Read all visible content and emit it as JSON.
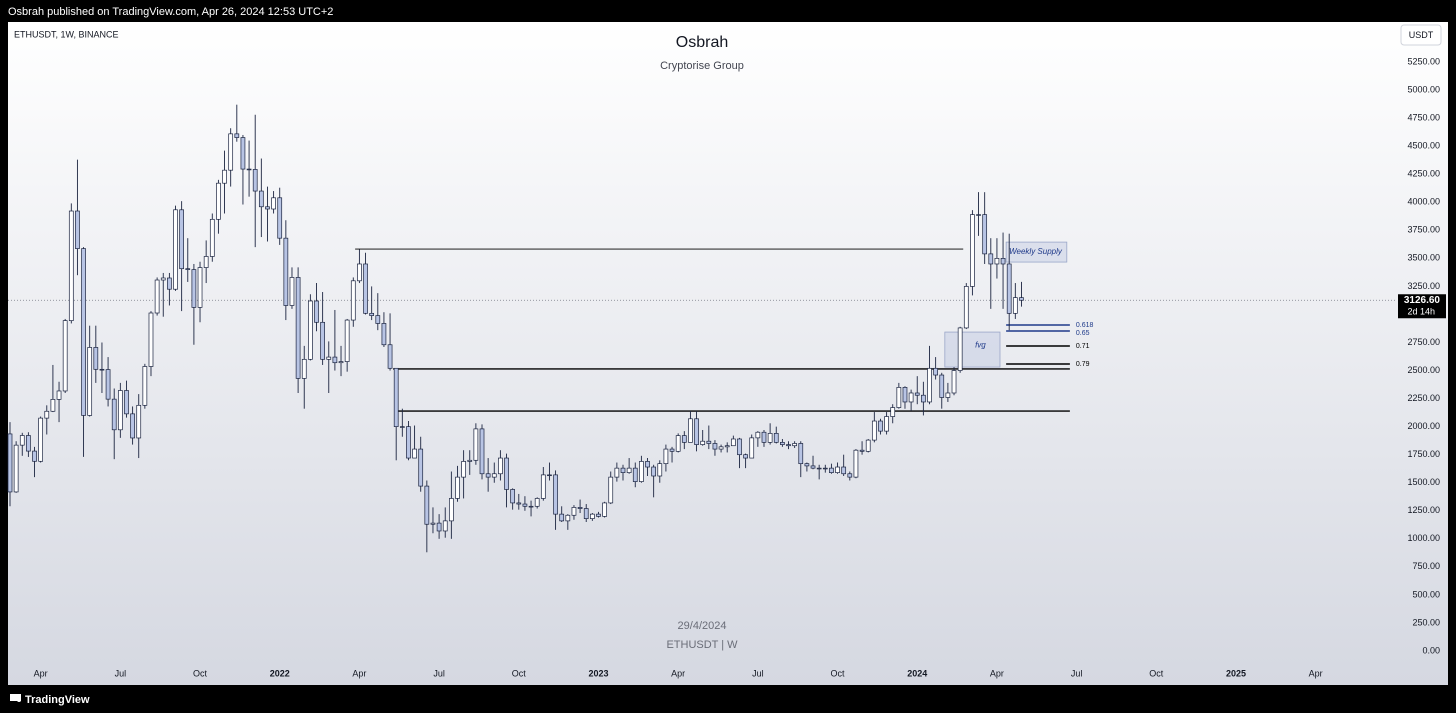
{
  "header": "Osbrah published on TradingView.com, Apr 26, 2024 12:53 UTC+2",
  "symbol": "ETHUSDT, 1W, BINANCE",
  "currency": "USDT",
  "watermark_date": "29/4/2024",
  "watermark_symbol": "ETHUSDT | W",
  "footer": "TradingView",
  "chart_data": {
    "type": "candlestick",
    "title": "Osbrah",
    "subtitle": "Cryptorise Group",
    "up_color": "#ffffff",
    "down_color": "#b8c4e4",
    "border_color": "#1b2440",
    "categories": [
      null,
      null,
      null,
      null,
      null,
      "Apr",
      null,
      null,
      null,
      null,
      null,
      null,
      null,
      null,
      null,
      null,
      null,
      null,
      "Jul",
      null,
      null,
      null,
      null,
      null,
      null,
      null,
      null,
      null,
      null,
      null,
      null,
      "Oct",
      null,
      null,
      null,
      null,
      null,
      null,
      null,
      null,
      null,
      null,
      null,
      null,
      "2022",
      null,
      null,
      null,
      null,
      null,
      null,
      null,
      null,
      null,
      null,
      null,
      null,
      "Apr",
      null,
      null,
      null,
      null,
      null,
      null,
      null,
      null,
      null,
      null,
      null,
      null,
      "Jul",
      null,
      null,
      null,
      null,
      null,
      null,
      null,
      null,
      null,
      null,
      null,
      null,
      "Oct",
      null,
      null,
      null,
      null,
      null,
      null,
      null,
      null,
      null,
      null,
      null,
      null,
      "2023",
      null,
      null,
      null,
      null,
      null,
      null,
      null,
      null,
      null,
      null,
      null,
      null,
      "Apr",
      null,
      null,
      null,
      null,
      null,
      null,
      null,
      null,
      null,
      null,
      null,
      null,
      "Jul",
      null,
      null,
      null,
      null,
      null,
      null,
      null,
      null,
      null,
      null,
      null,
      null,
      "Oct",
      null,
      null,
      null,
      null,
      null,
      null,
      null,
      null,
      null,
      null,
      null,
      null,
      "2024",
      null,
      null,
      null,
      null,
      null,
      null,
      null,
      null,
      null,
      null,
      null,
      null,
      "Apr",
      null,
      null,
      null,
      null,
      null,
      null,
      null,
      null,
      null,
      null,
      null,
      null,
      "Jul",
      null,
      null,
      null,
      null,
      null,
      null,
      null,
      null,
      null,
      null,
      null,
      null,
      "Oct",
      null,
      null,
      null,
      null,
      null,
      null,
      null,
      null,
      null,
      null,
      null,
      null,
      "2025",
      null,
      null,
      null,
      null,
      null,
      null,
      null,
      null,
      null,
      null,
      null,
      null,
      "Apr",
      null,
      null,
      null,
      null,
      null,
      null,
      null,
      null,
      null,
      null,
      null,
      null
    ],
    "open": [
      1935,
      1418,
      1835,
      1921,
      1782,
      1691,
      2076,
      2137,
      2243,
      2318,
      2945,
      3922,
      3587,
      2100,
      2706,
      2511,
      2509,
      2245,
      1972,
      2322,
      2114,
      1899,
      2190,
      2536,
      3013,
      3307,
      3325,
      3225,
      3933,
      3408,
      3400,
      3063,
      3418,
      3517,
      3848,
      4170,
      4286,
      4610,
      4577,
      4296,
      4293,
      4100,
      3960,
      3940,
      4040,
      3680,
      3080,
      3330,
      2430,
      2600,
      3120,
      2930,
      2600,
      2620,
      2570,
      2580,
      2950,
      3300,
      3450,
      3010,
      2990,
      2920,
      2730,
      2520,
      2000,
      2000,
      1720,
      1800,
      1470,
      1130,
      1140,
      1070,
      1160,
      1360,
      1550,
      1690,
      1700,
      1980,
      1580,
      1550,
      1580,
      1720,
      1440,
      1320,
      1310,
      1290,
      1290,
      1360,
      1570,
      1570,
      1220,
      1160,
      1210,
      1280,
      1270,
      1180,
      1220,
      1200,
      1320,
      1550,
      1630,
      1590,
      1630,
      1510,
      1690,
      1640,
      1560,
      1670,
      1800,
      1780,
      1920,
      1860,
      2070,
      1840,
      1870,
      1850,
      1800,
      1820,
      1830,
      1890,
      1750,
      1720,
      1900,
      1950,
      1860,
      1940,
      1860,
      1840,
      1830,
      1850,
      1670,
      1650,
      1630,
      1630,
      1630,
      1590,
      1640,
      1580,
      1550,
      1790,
      1780,
      1880,
      2050,
      1960,
      2090,
      2170,
      2350,
      2220,
      2300,
      2280,
      2220,
      2520,
      2460,
      2260,
      2300,
      2500,
      2880,
      3250,
      3890,
      3890,
      3540,
      3450,
      3500,
      3450,
      3010,
      3150,
      null,
      null,
      null,
      null,
      null,
      null,
      null,
      null,
      null,
      null,
      null,
      null,
      null,
      null,
      null,
      null,
      null,
      null,
      null,
      null,
      null,
      null,
      null,
      null,
      null,
      null,
      null,
      null,
      null,
      null,
      null,
      null,
      null,
      null,
      null,
      null,
      null,
      null,
      null,
      null,
      null,
      null,
      null,
      null,
      null,
      null,
      null,
      null,
      null,
      null,
      null,
      null,
      null,
      null,
      null,
      null,
      null,
      null,
      null,
      null
    ],
    "high": [
      2040,
      1870,
      1945,
      1950,
      1820,
      2090,
      2190,
      2550,
      2400,
      2960,
      3990,
      4380,
      3600,
      2900,
      2900,
      2750,
      2620,
      2340,
      2390,
      2410,
      2180,
      2290,
      2560,
      3030,
      3330,
      3370,
      3370,
      3970,
      4010,
      3680,
      3450,
      3470,
      3660,
      3900,
      4200,
      4460,
      4660,
      4870,
      4600,
      4550,
      4780,
      4390,
      4140,
      4100,
      4130,
      3840,
      3420,
      3420,
      2720,
      3180,
      3280,
      3200,
      2760,
      3040,
      2720,
      2960,
      3330,
      3580,
      3550,
      3250,
      3190,
      3020,
      3010,
      2520,
      2160,
      2050,
      2010,
      1910,
      1520,
      1280,
      1220,
      1280,
      1600,
      1650,
      1790,
      1790,
      2030,
      2020,
      1720,
      1680,
      1790,
      1760,
      1450,
      1400,
      1380,
      1340,
      1370,
      1640,
      1680,
      1610,
      1290,
      1220,
      1300,
      1350,
      1310,
      1230,
      1240,
      1330,
      1600,
      1680,
      1660,
      1720,
      1680,
      1740,
      1720,
      1660,
      1700,
      1840,
      1820,
      1940,
      1960,
      2140,
      2140,
      1970,
      2010,
      1880,
      1840,
      1860,
      1920,
      1900,
      1760,
      1930,
      1960,
      1970,
      2030,
      2000,
      1890,
      1870,
      1870,
      1870,
      1680,
      1740,
      1660,
      1660,
      1670,
      1680,
      1750,
      1600,
      1800,
      1870,
      1890,
      2130,
      2070,
      2130,
      2200,
      2390,
      2360,
      2330,
      2450,
      2400,
      2720,
      2620,
      2480,
      2390,
      2530,
      2890,
      3280,
      3930,
      4090,
      4090,
      3680,
      3680,
      3730,
      3720,
      3280,
      3290,
      null,
      null,
      null,
      null,
      null,
      null,
      null,
      null,
      null,
      null,
      null,
      null,
      null,
      null,
      null,
      null,
      null,
      null,
      null,
      null,
      null,
      null,
      null,
      null,
      null,
      null,
      null,
      null,
      null,
      null,
      null,
      null,
      null,
      null,
      null,
      null,
      null,
      null,
      null,
      null,
      null,
      null,
      null,
      null,
      null,
      null,
      null,
      null,
      null,
      null,
      null,
      null,
      null,
      null,
      null,
      null,
      null,
      null,
      null,
      null
    ],
    "low": [
      1290,
      1410,
      1740,
      1730,
      1550,
      1680,
      1930,
      2130,
      2040,
      2300,
      2920,
      3350,
      1730,
      2090,
      2390,
      2300,
      2180,
      1710,
      1900,
      2080,
      1840,
      1720,
      2160,
      2450,
      2990,
      2980,
      3080,
      3210,
      3030,
      3290,
      2730,
      2930,
      3280,
      3470,
      3720,
      3900,
      4140,
      4540,
      3980,
      4050,
      3600,
      3690,
      3650,
      3900,
      3620,
      2950,
      3050,
      2300,
      2160,
      2590,
      2850,
      2550,
      2300,
      2500,
      2450,
      2490,
      2890,
      3280,
      3000,
      2950,
      2860,
      2710,
      2500,
      1700,
      1910,
      1700,
      1720,
      1420,
      880,
      1050,
      1000,
      1010,
      1000,
      1330,
      1360,
      1570,
      1660,
      1530,
      1420,
      1500,
      1520,
      1280,
      1260,
      1260,
      1250,
      1200,
      1270,
      1340,
      1520,
      1080,
      1150,
      1080,
      1170,
      1230,
      1150,
      1160,
      1190,
      1190,
      1310,
      1510,
      1520,
      1580,
      1460,
      1500,
      1560,
      1370,
      1500,
      1600,
      1680,
      1770,
      1800,
      1860,
      1780,
      1830,
      1800,
      1740,
      1770,
      1770,
      1830,
      1630,
      1630,
      1720,
      1820,
      1820,
      1840,
      1850,
      1820,
      1800,
      1810,
      1550,
      1600,
      1620,
      1530,
      1590,
      1580,
      1580,
      1560,
      1520,
      1540,
      1750,
      1770,
      1860,
      1930,
      1930,
      2030,
      2160,
      2160,
      2140,
      2200,
      2100,
      2200,
      2420,
      2160,
      2220,
      2280,
      2480,
      2870,
      3170,
      3700,
      3450,
      3050,
      3320,
      3050,
      2860,
      2960,
      3070,
      null,
      null,
      null,
      null,
      null,
      null,
      null,
      null,
      null,
      null,
      null,
      null,
      null,
      null,
      null,
      null,
      null,
      null,
      null,
      null,
      null,
      null,
      null,
      null,
      null,
      null,
      null,
      null,
      null,
      null,
      null,
      null,
      null,
      null,
      null,
      null,
      null,
      null,
      null,
      null,
      null,
      null,
      null,
      null,
      null,
      null,
      null,
      null,
      null,
      null,
      null,
      null,
      null,
      null,
      null,
      null,
      null,
      null,
      null,
      null
    ],
    "close": [
      1418,
      1835,
      1921,
      1782,
      1691,
      2076,
      2137,
      2243,
      2318,
      2945,
      3922,
      3587,
      2100,
      2706,
      2511,
      2509,
      2245,
      1972,
      2322,
      2114,
      1899,
      2190,
      2536,
      3013,
      3307,
      3325,
      3225,
      3933,
      3408,
      3400,
      3063,
      3418,
      3517,
      3848,
      4170,
      4286,
      4610,
      4577,
      4296,
      4293,
      4100,
      3960,
      3940,
      4040,
      3680,
      3080,
      3330,
      2430,
      2600,
      3120,
      2930,
      2600,
      2620,
      2570,
      2580,
      2950,
      3300,
      3450,
      3010,
      2990,
      2920,
      2730,
      2520,
      2000,
      2000,
      1720,
      1800,
      1470,
      1130,
      1140,
      1070,
      1160,
      1360,
      1550,
      1690,
      1700,
      1980,
      1580,
      1550,
      1580,
      1720,
      1440,
      1320,
      1310,
      1290,
      1290,
      1360,
      1570,
      1570,
      1220,
      1160,
      1210,
      1280,
      1270,
      1180,
      1220,
      1200,
      1320,
      1550,
      1630,
      1590,
      1630,
      1510,
      1690,
      1640,
      1560,
      1670,
      1800,
      1780,
      1920,
      1860,
      2070,
      1840,
      1870,
      1850,
      1800,
      1820,
      1830,
      1890,
      1750,
      1720,
      1900,
      1950,
      1860,
      1940,
      1860,
      1840,
      1830,
      1850,
      1670,
      1650,
      1630,
      1630,
      1630,
      1590,
      1640,
      1580,
      1550,
      1790,
      1780,
      1880,
      2050,
      1960,
      2090,
      2170,
      2350,
      2220,
      2300,
      2280,
      2220,
      2520,
      2460,
      2260,
      2300,
      2500,
      2880,
      3250,
      3890,
      3890,
      3540,
      3450,
      3500,
      3450,
      3010,
      3150,
      3126.6,
      null,
      null,
      null,
      null,
      null,
      null,
      null,
      null,
      null,
      null,
      null,
      null,
      null,
      null,
      null,
      null,
      null,
      null,
      null,
      null,
      null,
      null,
      null,
      null,
      null,
      null,
      null,
      null,
      null,
      null,
      null,
      null,
      null,
      null,
      null,
      null,
      null,
      null,
      null,
      null,
      null,
      null,
      null,
      null,
      null,
      null,
      null,
      null,
      null,
      null,
      null,
      null,
      null,
      null,
      null,
      null,
      null,
      null,
      null,
      null
    ],
    "ylim": [
      -98,
      5607
    ],
    "yticks": [
      {
        "value": 0,
        "label": "0.00"
      },
      {
        "value": 250,
        "label": "250.00"
      },
      {
        "value": 500,
        "label": "500.00"
      },
      {
        "value": 750,
        "label": "750.00"
      },
      {
        "value": 1000,
        "label": "1000.00"
      },
      {
        "value": 1250,
        "label": "1250.00"
      },
      {
        "value": 1500,
        "label": "1500.00"
      },
      {
        "value": 1750,
        "label": "1750.00"
      },
      {
        "value": 2000,
        "label": "2000.00"
      },
      {
        "value": 2250,
        "label": "2250.00"
      },
      {
        "value": 2500,
        "label": "2500.00"
      },
      {
        "value": 2750,
        "label": "2750.00"
      },
      {
        "value": 3000,
        "label": "3000.00"
      },
      {
        "value": 3250,
        "label": "3250.00"
      },
      {
        "value": 3500,
        "label": "3500.00"
      },
      {
        "value": 3750,
        "label": "3750.00"
      },
      {
        "value": 4000,
        "label": "4000.00"
      },
      {
        "value": 4250,
        "label": "4250.00"
      },
      {
        "value": 4500,
        "label": "4500.00"
      },
      {
        "value": 4750,
        "label": "4750.00"
      },
      {
        "value": 5000,
        "label": "5000.00"
      },
      {
        "value": 5250,
        "label": "5250.00"
      }
    ],
    "grid": false,
    "price_line": {
      "value": 3126.6,
      "label": "3126.60",
      "countdown": "2d 14h"
    },
    "levels": [
      3583,
      2514,
      2139
    ],
    "zones": [
      {
        "label": "Weekly Supply",
        "top": 3645,
        "bottom": 3467
      },
      {
        "label": "fvg",
        "top": 2843,
        "bottom": 2531
      }
    ],
    "fib": [
      {
        "value": 2906,
        "label": "0.618",
        "color": "#1f3a8a"
      },
      {
        "value": 2852,
        "label": "0.65",
        "color": "#1f3a8a"
      },
      {
        "value": 2719,
        "label": "0.71",
        "color": "#000000"
      },
      {
        "value": 2558,
        "label": "0.79",
        "color": "#000000"
      }
    ]
  }
}
